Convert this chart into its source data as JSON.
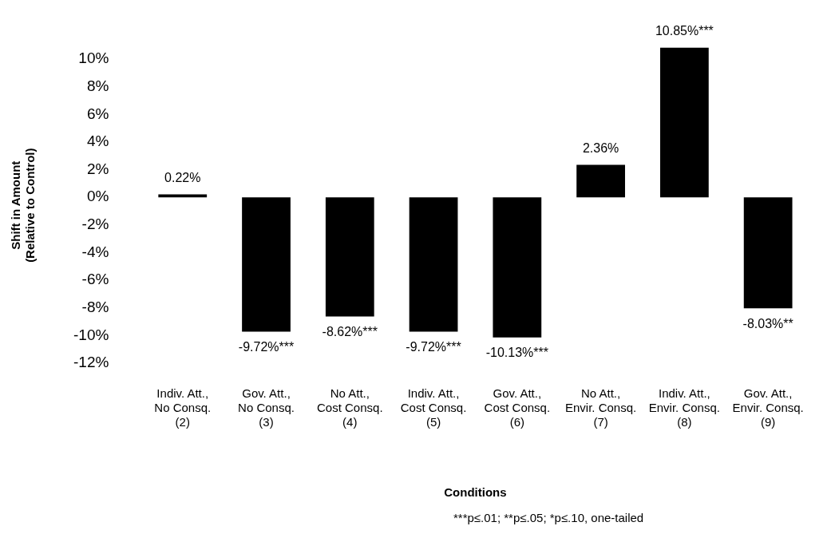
{
  "chart_data": {
    "type": "bar",
    "categories": [
      "Indiv. Att.,\nNo Consq.\n(2)",
      "Gov. Att.,\nNo Consq.\n(3)",
      "No Att.,\nCost Consq.\n(4)",
      "Indiv. Att.,\nCost Consq.\n(5)",
      "Gov. Att.,\nCost Consq.\n(6)",
      "No Att.,\nEnvir. Consq.\n(7)",
      "Indiv. Att.,\nEnvir. Consq.\n(8)",
      "Gov. Att.,\nEnvir. Consq.\n(9)"
    ],
    "values": [
      0.22,
      -9.72,
      -8.62,
      -9.72,
      -10.13,
      2.36,
      10.85,
      -8.03
    ],
    "value_labels": [
      "0.22%",
      "-9.72%***",
      "-8.62%***",
      "-9.72%***",
      "-10.13%***",
      "2.36%",
      "10.85%***",
      "-8.03%**"
    ],
    "color": "#000000",
    "xlabel": "Conditions",
    "ylabel": "Shift in Amount\n(Relative to Control)",
    "ylim": [
      -12,
      10.85
    ],
    "yticks": [
      {
        "value": -12,
        "label": "-12%"
      },
      {
        "value": -10,
        "label": "-10%"
      },
      {
        "value": -8,
        "label": "-8%"
      },
      {
        "value": -6,
        "label": "-6%"
      },
      {
        "value": -4,
        "label": "-4%"
      },
      {
        "value": -2,
        "label": "-2%"
      },
      {
        "value": 0,
        "label": "0%"
      },
      {
        "value": 2,
        "label": "2%"
      },
      {
        "value": 4,
        "label": "4%"
      },
      {
        "value": 6,
        "label": "6%"
      },
      {
        "value": 8,
        "label": "8%"
      },
      {
        "value": 10,
        "label": "10%"
      }
    ],
    "annotations": [
      "***p≤.01; **p≤.05; *p≤.10, one-tailed"
    ],
    "grid": false,
    "legend": false
  }
}
